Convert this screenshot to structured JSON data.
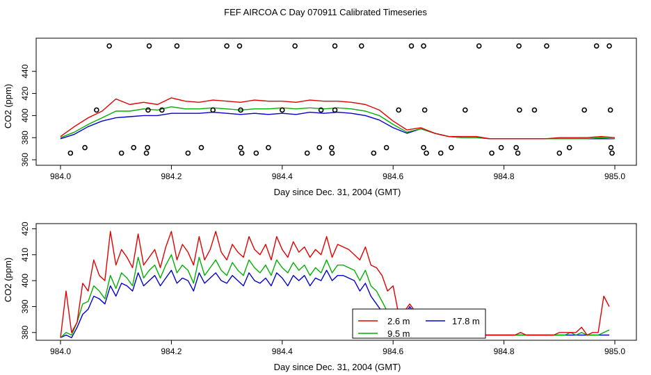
{
  "title": "FEF AIRCOA C  Day 070911  Calibrated Timeseries",
  "colors": {
    "s26": "#e00000",
    "s95": "#00b000",
    "s178": "#0000d0",
    "axis": "#000000"
  },
  "chart_data": [
    {
      "type": "line",
      "panel": "top",
      "xlabel": "Day since Dec. 31, 2004 (GMT)",
      "ylabel": "CO2 (ppm)",
      "xlim": [
        984.0,
        985.0
      ],
      "ylim": [
        355,
        470
      ],
      "xticks": [
        "984.0",
        "984.2",
        "984.4",
        "984.6",
        "984.8",
        "985.0"
      ],
      "yticks": [
        "360",
        "380",
        "400",
        "420",
        "440"
      ],
      "x": [
        984.0,
        984.025,
        984.05,
        984.075,
        984.1,
        984.125,
        984.15,
        984.175,
        984.2,
        984.225,
        984.25,
        984.275,
        984.3,
        984.325,
        984.35,
        984.375,
        984.4,
        984.425,
        984.45,
        984.475,
        984.5,
        984.525,
        984.55,
        984.575,
        984.6,
        984.625,
        984.65,
        984.675,
        984.7,
        984.725,
        984.75,
        984.775,
        984.8,
        984.825,
        984.85,
        984.875,
        984.9,
        984.925,
        984.95,
        984.975,
        985.0
      ],
      "series": [
        {
          "name": "2.6 m",
          "values": [
            381,
            390,
            398,
            404,
            415,
            410,
            412,
            410,
            416,
            413,
            412,
            414,
            413,
            412,
            414,
            413,
            413,
            412,
            414,
            413,
            413,
            412,
            410,
            405,
            395,
            387,
            389,
            384,
            381,
            381,
            381,
            379,
            379,
            379,
            379,
            379,
            380,
            380,
            380,
            381,
            380
          ]
        },
        {
          "name": "9.5 m",
          "values": [
            380,
            385,
            392,
            398,
            404,
            404,
            406,
            405,
            408,
            406,
            406,
            407,
            406,
            405,
            406,
            406,
            407,
            406,
            407,
            406,
            407,
            406,
            404,
            400,
            392,
            385,
            388,
            384,
            381,
            380,
            380,
            379,
            379,
            379,
            379,
            379,
            379,
            379,
            379,
            380,
            379
          ]
        },
        {
          "name": "17.8 m",
          "values": [
            379,
            383,
            390,
            395,
            398,
            399,
            400,
            400,
            402,
            402,
            402,
            403,
            402,
            401,
            402,
            401,
            402,
            401,
            403,
            402,
            403,
            402,
            400,
            396,
            389,
            384,
            388,
            384,
            381,
            380,
            380,
            379,
            379,
            379,
            379,
            379,
            379,
            379,
            379,
            379,
            379
          ]
        }
      ],
      "markers_high_y": 463,
      "markers_low_y": 366,
      "markers_mid_y": 405,
      "markers_lower_y": 371,
      "markers_high_x": [
        984.088,
        984.16,
        984.21,
        984.3,
        984.323,
        984.423,
        984.495,
        984.543,
        984.633,
        984.655,
        984.755,
        984.827,
        984.877,
        984.967,
        984.99
      ],
      "markers_mid_x": [
        984.065,
        984.158,
        984.183,
        984.275,
        984.325,
        984.4,
        984.47,
        984.495,
        984.61,
        984.657,
        984.73,
        984.828,
        984.855,
        984.945,
        984.992
      ],
      "markers_lower_x": [
        984.044,
        984.132,
        984.157,
        984.254,
        984.325,
        984.375,
        984.467,
        984.489,
        984.588,
        984.655,
        984.705,
        984.795,
        984.822,
        984.918,
        984.993
      ],
      "markers_low_x": [
        984.018,
        984.11,
        984.155,
        984.23,
        984.327,
        984.353,
        984.445,
        984.49,
        984.565,
        984.66,
        984.686,
        984.778,
        984.825,
        984.9,
        984.995
      ]
    },
    {
      "type": "line",
      "panel": "bottom",
      "xlabel": "Day since Dec. 31, 2004 (GMT)",
      "ylabel": "CO2 (ppm)",
      "xlim": [
        984.0,
        985.0
      ],
      "ylim": [
        377,
        422
      ],
      "xticks": [
        "984.0",
        "984.2",
        "984.4",
        "984.6",
        "984.8",
        "985.0"
      ],
      "yticks": [
        "380",
        "390",
        "400",
        "410",
        "420"
      ],
      "legend": {
        "placement": "bottom-center",
        "entries": [
          "2.6 m",
          "9.5 m",
          "17.8 m"
        ]
      },
      "x": [
        984.0,
        984.01,
        984.02,
        984.03,
        984.04,
        984.05,
        984.06,
        984.07,
        984.08,
        984.09,
        984.1,
        984.11,
        984.12,
        984.13,
        984.14,
        984.15,
        984.16,
        984.17,
        984.18,
        984.19,
        984.2,
        984.21,
        984.22,
        984.23,
        984.24,
        984.25,
        984.26,
        984.27,
        984.28,
        984.29,
        984.3,
        984.31,
        984.32,
        984.33,
        984.34,
        984.35,
        984.36,
        984.37,
        984.38,
        984.39,
        984.4,
        984.41,
        984.42,
        984.43,
        984.44,
        984.45,
        984.46,
        984.47,
        984.48,
        984.49,
        984.5,
        984.51,
        984.52,
        984.53,
        984.54,
        984.55,
        984.56,
        984.57,
        984.58,
        984.59,
        984.6,
        984.61,
        984.62,
        984.63,
        984.64,
        984.65,
        984.66,
        984.67,
        984.68,
        984.69,
        984.7,
        984.71,
        984.72,
        984.73,
        984.74,
        984.75,
        984.76,
        984.77,
        984.78,
        984.79,
        984.8,
        984.81,
        984.82,
        984.83,
        984.84,
        984.85,
        984.86,
        984.87,
        984.88,
        984.89,
        984.9,
        984.91,
        984.92,
        984.93,
        984.94,
        984.95,
        984.96,
        984.97,
        984.98,
        984.99
      ],
      "series": [
        {
          "name": "2.6 m",
          "values": [
            378,
            396,
            380,
            384,
            399,
            396,
            408,
            402,
            400,
            419,
            406,
            412,
            409,
            405,
            418,
            406,
            409,
            412,
            405,
            413,
            419,
            408,
            414,
            411,
            406,
            417,
            408,
            412,
            419,
            411,
            408,
            414,
            411,
            409,
            417,
            412,
            410,
            414,
            408,
            417,
            412,
            409,
            415,
            411,
            413,
            409,
            412,
            410,
            417,
            409,
            414,
            413,
            412,
            410,
            408,
            413,
            406,
            405,
            402,
            396,
            398,
            387,
            388,
            391,
            388,
            387,
            386,
            385,
            382,
            381,
            380,
            381,
            382,
            379,
            379,
            380,
            379,
            379,
            379,
            379,
            379,
            379,
            379,
            380,
            379,
            379,
            379,
            379,
            379,
            379,
            380,
            380,
            380,
            380,
            382,
            379,
            380,
            380,
            394,
            390
          ]
        },
        {
          "name": "9.5 m",
          "values": [
            378,
            380,
            379,
            384,
            391,
            392,
            398,
            396,
            393,
            402,
            397,
            403,
            401,
            398,
            409,
            401,
            404,
            406,
            401,
            406,
            410,
            403,
            406,
            404,
            399,
            409,
            402,
            405,
            408,
            404,
            402,
            407,
            404,
            402,
            408,
            405,
            403,
            406,
            402,
            408,
            405,
            403,
            407,
            404,
            406,
            402,
            405,
            403,
            408,
            403,
            406,
            406,
            405,
            404,
            400,
            404,
            398,
            396,
            392,
            388,
            388,
            384,
            386,
            389,
            387,
            386,
            385,
            384,
            381,
            381,
            380,
            381,
            381,
            379,
            379,
            379,
            379,
            379,
            379,
            379,
            379,
            379,
            379,
            379,
            379,
            379,
            379,
            379,
            379,
            379,
            379,
            379,
            380,
            379,
            380,
            379,
            379,
            379,
            380,
            381
          ]
        },
        {
          "name": "17.8 m",
          "values": [
            378,
            379,
            378,
            382,
            387,
            389,
            394,
            393,
            391,
            398,
            394,
            399,
            398,
            396,
            403,
            398,
            400,
            402,
            398,
            401,
            404,
            399,
            401,
            400,
            396,
            403,
            399,
            401,
            403,
            400,
            399,
            402,
            400,
            398,
            403,
            400,
            399,
            401,
            398,
            403,
            401,
            398,
            402,
            400,
            402,
            398,
            401,
            400,
            404,
            400,
            402,
            402,
            401,
            400,
            396,
            399,
            394,
            391,
            388,
            386,
            385,
            383,
            386,
            390,
            387,
            386,
            385,
            384,
            381,
            381,
            380,
            381,
            381,
            379,
            379,
            379,
            379,
            379,
            379,
            379,
            379,
            379,
            379,
            379,
            379,
            379,
            379,
            379,
            379,
            379,
            379,
            379,
            379,
            379,
            379,
            379,
            379,
            379,
            379,
            379
          ]
        }
      ]
    }
  ]
}
